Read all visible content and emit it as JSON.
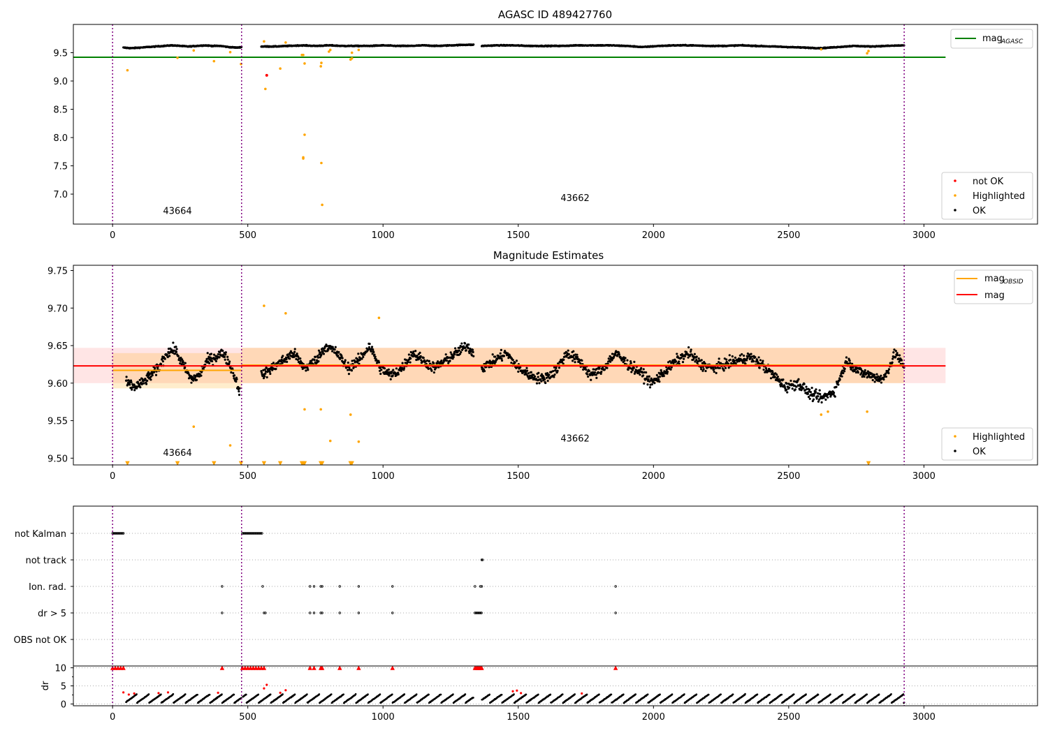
{
  "chart_data": [
    {
      "type": "scatter",
      "title": "AGASC ID 489427760",
      "xlim": [
        -145,
        3420
      ],
      "ylim": [
        6.47,
        10.0
      ],
      "xticks": [
        0,
        500,
        1000,
        1500,
        2000,
        2500,
        3000
      ],
      "yticks": [
        7.0,
        7.5,
        8.0,
        8.5,
        9.0,
        9.5
      ],
      "ytick_labels": [
        "7.0",
        "7.5",
        "8.0",
        "8.5",
        "9.0",
        "9.5"
      ],
      "grid": false,
      "obsid_boundaries": [
        0,
        477,
        2927
      ],
      "obsid_labels": [
        {
          "text": "43664",
          "x": 240,
          "y": 6.65
        },
        {
          "text": "43662",
          "x": 1710,
          "y": 6.88
        }
      ],
      "reference_line": {
        "name": "mag_AGASC",
        "y": 9.42,
        "x_range": [
          -145,
          3080
        ],
        "color": "#008000"
      },
      "legends": [
        {
          "position": "top-right",
          "entries": [
            {
              "label": "mag",
              "subscript": "AGASC",
              "kind": "line",
              "color": "#008000"
            }
          ]
        },
        {
          "position": "bottom-right",
          "entries": [
            {
              "label": "not OK",
              "kind": "dot",
              "color": "#ff0000"
            },
            {
              "label": "Highlighted",
              "kind": "dot",
              "color": "#ffa500"
            },
            {
              "label": "OK",
              "kind": "dot",
              "color": "#000000"
            }
          ]
        }
      ],
      "series": [
        {
          "name": "OK",
          "color": "#000000",
          "segments": [
            {
              "x": [
                40,
                70,
                100,
                130,
                160,
                190,
                220,
                250,
                280,
                310,
                340,
                370,
                400,
                430,
                460,
                477
              ],
              "y": [
                9.59,
                9.58,
                9.59,
                9.6,
                9.61,
                9.62,
                9.63,
                9.62,
                9.61,
                9.62,
                9.63,
                9.62,
                9.62,
                9.6,
                9.59,
                9.6
              ]
            },
            {
              "x": [
                550,
                600,
                650,
                700,
                750,
                800,
                850,
                900,
                950,
                1000,
                1050,
                1100,
                1150,
                1200,
                1250,
                1300,
                1335
              ],
              "y": [
                9.61,
                9.61,
                9.62,
                9.63,
                9.62,
                9.63,
                9.62,
                9.62,
                9.62,
                9.63,
                9.62,
                9.62,
                9.63,
                9.62,
                9.63,
                9.64,
                9.64
              ]
            },
            {
              "x": [
                1365,
                1420,
                1480,
                1540,
                1600,
                1660,
                1720,
                1780,
                1840,
                1900,
                1960,
                2020,
                2080,
                2140,
                2200,
                2260,
                2320,
                2380,
                2440,
                2500,
                2560,
                2620,
                2680,
                2740,
                2800,
                2860,
                2927
              ],
              "y": [
                9.62,
                9.63,
                9.63,
                9.62,
                9.62,
                9.62,
                9.63,
                9.63,
                9.63,
                9.62,
                9.6,
                9.62,
                9.63,
                9.63,
                9.62,
                9.62,
                9.63,
                9.62,
                9.61,
                9.6,
                9.59,
                9.58,
                9.6,
                9.62,
                9.61,
                9.62,
                9.63
              ]
            }
          ]
        },
        {
          "name": "Highlighted",
          "color": "#ffa500",
          "x": [
            55,
            240,
            300,
            375,
            435,
            475,
            560,
            565,
            620,
            640,
            700,
            705,
            710,
            705,
            705,
            710,
            770,
            772,
            772,
            775,
            800,
            805,
            880,
            885,
            885,
            910,
            2620,
            2790,
            2795
          ],
          "y": [
            9.19,
            9.41,
            9.54,
            9.35,
            9.51,
            9.3,
            9.7,
            8.86,
            9.22,
            9.68,
            9.46,
            9.46,
            9.31,
            7.65,
            7.63,
            8.05,
            9.26,
            9.32,
            7.55,
            6.81,
            9.52,
            9.55,
            9.38,
            9.4,
            9.5,
            9.55,
            9.56,
            9.49,
            9.53
          ]
        },
        {
          "name": "not OK",
          "color": "#ff0000",
          "x": [
            570
          ],
          "y": [
            9.1
          ]
        }
      ]
    },
    {
      "type": "scatter",
      "title": "Magnitude Estimates",
      "xlim": [
        -145,
        3420
      ],
      "ylim": [
        9.491,
        9.757
      ],
      "xticks": [
        0,
        500,
        1000,
        1500,
        2000,
        2500,
        3000
      ],
      "yticks": [
        9.5,
        9.55,
        9.6,
        9.65,
        9.7,
        9.75
      ],
      "ytick_labels": [
        "9.50",
        "9.55",
        "9.60",
        "9.65",
        "9.70",
        "9.75"
      ],
      "grid": false,
      "obsid_boundaries": [
        0,
        477,
        2927
      ],
      "obsid_labels": [
        {
          "text": "43664",
          "x": 240,
          "y": 9.503
        },
        {
          "text": "43662",
          "x": 1710,
          "y": 9.522
        }
      ],
      "mag": {
        "value": 9.623,
        "band": [
          9.6,
          9.647
        ],
        "x_range": [
          -145,
          3080
        ],
        "color": "#ff0000"
      },
      "mag_obsid": [
        {
          "x_range": [
            0,
            477
          ],
          "value": 9.617,
          "band": [
            9.593,
            9.64
          ]
        },
        {
          "x_range": [
            477,
            2927
          ],
          "value": 9.624,
          "band": [
            9.6,
            9.647
          ]
        }
      ],
      "legends": [
        {
          "position": "top-right",
          "entries": [
            {
              "label": "mag",
              "subscript": "OBSID",
              "kind": "line",
              "color": "#ffa500"
            },
            {
              "label": "mag",
              "kind": "line",
              "color": "#ff0000"
            }
          ]
        },
        {
          "position": "bottom-right",
          "entries": [
            {
              "label": "Highlighted",
              "kind": "dot",
              "color": "#ffa500"
            },
            {
              "label": "OK",
              "kind": "dot",
              "color": "#000000"
            }
          ]
        }
      ],
      "series": [
        {
          "name": "OK",
          "color": "#000000",
          "segments": [
            {
              "x": [
                50,
                80,
                110,
                140,
                170,
                200,
                230,
                260,
                290,
                320,
                350,
                380,
                410,
                440,
                470
              ],
              "y": [
                9.6,
                9.595,
                9.6,
                9.61,
                9.62,
                9.64,
                9.645,
                9.625,
                9.605,
                9.61,
                9.63,
                9.635,
                9.64,
                9.62,
                9.59
              ]
            },
            {
              "x": [
                550,
                590,
                630,
                670,
                710,
                750,
                790,
                830,
                870,
                910,
                950,
                990,
                1030,
                1070,
                1110,
                1150,
                1190,
                1230,
                1270,
                1310,
                1335
              ],
              "y": [
                9.61,
                9.62,
                9.63,
                9.64,
                9.62,
                9.63,
                9.65,
                9.64,
                9.62,
                9.63,
                9.65,
                9.62,
                9.61,
                9.62,
                9.64,
                9.63,
                9.62,
                9.63,
                9.64,
                9.65,
                9.64
              ]
            },
            {
              "x": [
                1365,
                1410,
                1455,
                1500,
                1545,
                1590,
                1635,
                1680,
                1725,
                1770,
                1815,
                1860,
                1905,
                1950,
                1995,
                2040,
                2085,
                2130,
                2175,
                2220,
                2265,
                2310,
                2355,
                2400,
                2445,
                2490,
                2535,
                2580,
                2625,
                2670,
                2715,
                2760,
                2805,
                2850,
                2895,
                2927
              ],
              "y": [
                9.62,
                9.63,
                9.64,
                9.62,
                9.61,
                9.605,
                9.615,
                9.64,
                9.63,
                9.61,
                9.62,
                9.64,
                9.625,
                9.615,
                9.6,
                9.615,
                9.63,
                9.64,
                9.625,
                9.62,
                9.625,
                9.63,
                9.635,
                9.625,
                9.61,
                9.595,
                9.6,
                9.585,
                9.58,
                9.59,
                9.63,
                9.615,
                9.61,
                9.605,
                9.64,
                9.62
              ]
            }
          ]
        },
        {
          "name": "Highlighted",
          "color": "#ffa500",
          "x": [
            300,
            435,
            560,
            640,
            710,
            770,
            805,
            880,
            910,
            985,
            2620,
            2645,
            2790
          ],
          "y": [
            9.542,
            9.517,
            9.703,
            9.693,
            9.565,
            9.565,
            9.523,
            9.558,
            9.522,
            9.687,
            9.558,
            9.562,
            9.562
          ]
        },
        {
          "name": "Highlighted (below range)",
          "color": "#ffa500",
          "marker": "triangle-down",
          "x": [
            55,
            240,
            375,
            475,
            560,
            620,
            700,
            705,
            710,
            770,
            775,
            880,
            885,
            2795
          ],
          "y": [
            9.493,
            9.493,
            9.493,
            9.493,
            9.493,
            9.493,
            9.493,
            9.493,
            9.493,
            9.493,
            9.493,
            9.493,
            9.493,
            9.493
          ]
        }
      ]
    },
    {
      "type": "scatter",
      "flags_panel": {
        "xlim": [
          -145,
          3420
        ],
        "obsid_boundaries": [
          0,
          477,
          2927
        ],
        "rows": [
          "not Kalman",
          "not track",
          "Ion. rad.",
          "dr > 5",
          "OBS not OK"
        ],
        "flags": [
          {
            "row": "not Kalman",
            "runs": [
              [
                0,
                40
              ],
              [
                480,
                555
              ]
            ]
          },
          {
            "row": "not track",
            "points": [
              1365,
              1368
            ]
          },
          {
            "row": "Ion. rad.",
            "points": [
              405,
              555,
              730,
              745,
              770,
              775,
              840,
              910,
              1035,
              1340,
              1360,
              1365,
              1860
            ]
          },
          {
            "row": "dr > 5",
            "points": [
              405,
              560,
              565,
              730,
              745,
              770,
              775,
              840,
              910,
              1035,
              1860
            ],
            "runs": [
              [
                1340,
                1365
              ]
            ]
          },
          {
            "row": "OBS not OK",
            "points": []
          }
        ]
      },
      "dr_panel": {
        "ylabel": "dr",
        "ylim": [
          -0.5,
          10.5
        ],
        "yticks": [
          0,
          5,
          10
        ],
        "ytick_labels": [
          "0",
          "5",
          "10"
        ],
        "xticks": [
          0,
          500,
          1000,
          1500,
          2000,
          2500,
          3000
        ],
        "series": [
          {
            "name": "OK",
            "color": "#000000",
            "description": "sawtooth pattern 0 to 3 from x=50 to x=2927, gaps near 477 and 1335-1365"
          },
          {
            "name": "not OK",
            "color": "#ff0000",
            "x": [
              40,
              60,
              80,
              170,
              205,
              390,
              560,
              570,
              620,
              640,
              1480,
              1495,
              1510,
              1735
            ],
            "y": [
              3.2,
              2.6,
              2.9,
              3.0,
              3.2,
              3.1,
              4.3,
              5.3,
              3.1,
              3.8,
              3.5,
              3.7,
              3.0,
              2.9
            ]
          },
          {
            "name": "not OK (capped at 10)",
            "color": "#ff0000",
            "marker": "triangle-up",
            "x": [
              0,
              10,
              20,
              30,
              40,
              405,
              480,
              490,
              500,
              510,
              520,
              530,
              540,
              550,
              560,
              730,
              745,
              770,
              775,
              840,
              910,
              1035,
              1340,
              1345,
              1350,
              1355,
              1360,
              1365,
              1860
            ],
            "y": [
              10,
              10,
              10,
              10,
              10,
              10,
              10,
              10,
              10,
              10,
              10,
              10,
              10,
              10,
              10,
              10,
              10,
              10,
              10,
              10,
              10,
              10,
              10,
              10,
              10,
              10,
              10,
              10,
              10
            ]
          }
        ]
      }
    }
  ]
}
